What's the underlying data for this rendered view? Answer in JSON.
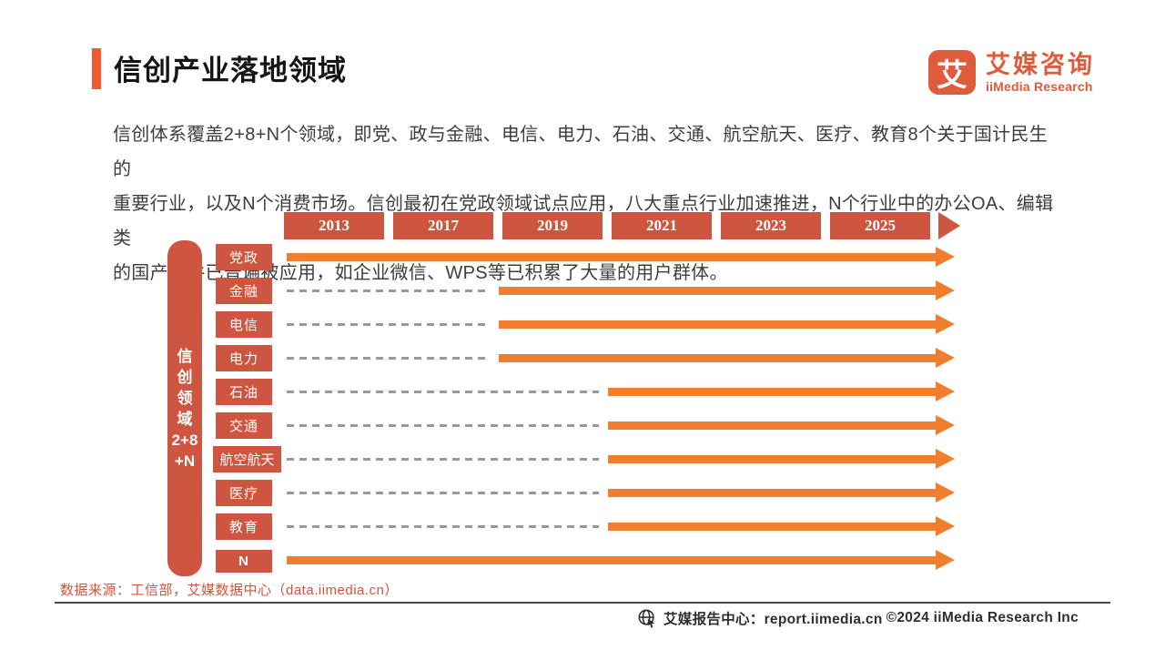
{
  "header": {
    "title": "信创产业落地领域"
  },
  "logo": {
    "mark": "艾",
    "name_cn": "艾媒咨询",
    "name_en": "iiMedia Research"
  },
  "intro": {
    "lines": [
      "信创体系覆盖2+8+N个领域，即党、政与金融、电信、电力、石油、交通、航空航天、医疗、教育8个关于国计民生的",
      "重要行业，以及N个消费市场。信创最初在党政领域试点应用，八大重点行业加速推进，N个行业中的办公OA、编辑类",
      "的国产软件已普遍被应用，如企业微信、WPS等已积累了大量的用户群体。"
    ]
  },
  "chart_data": {
    "type": "bar",
    "subtype": "timeline-gantt",
    "title": "信创产业落地领域",
    "x": {
      "years": [
        "2013",
        "2017",
        "2019",
        "2021",
        "2023",
        "2025"
      ]
    },
    "axis_label": "信创领域2+8+N",
    "axis_label_lines": [
      "信",
      "创",
      "领",
      "域",
      "2+8",
      "+N"
    ],
    "legend_position": "none",
    "rows": [
      {
        "label": "党政",
        "start_year": "2013"
      },
      {
        "label": "金融",
        "start_year": "2019"
      },
      {
        "label": "电信",
        "start_year": "2019"
      },
      {
        "label": "电力",
        "start_year": "2019"
      },
      {
        "label": "石油",
        "start_year": "2021"
      },
      {
        "label": "交通",
        "start_year": "2021"
      },
      {
        "label": "航空航天",
        "start_year": "2021"
      },
      {
        "label": "医疗",
        "start_year": "2021"
      },
      {
        "label": "教育",
        "start_year": "2021"
      },
      {
        "label": "N",
        "start_year": "2013"
      }
    ],
    "colors": {
      "box_red": "#CE5540",
      "arrow_orange": "#EF7E2E",
      "dash_gray": "#999999",
      "accent": "#F4582E",
      "brand": "#DE5B3B"
    }
  },
  "source": {
    "text": "数据来源：工信部，艾媒数据中心（data.iimedia.cn）"
  },
  "footer": {
    "report_center": "艾媒报告中心：report.iimedia.cn",
    "copyright": "©2024  iiMedia Research Inc"
  }
}
